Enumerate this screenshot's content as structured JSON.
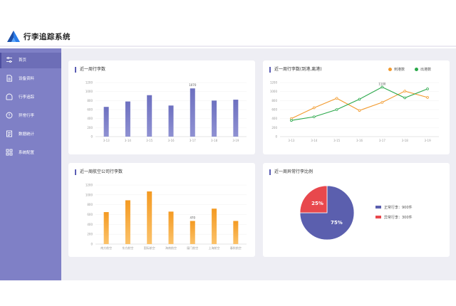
{
  "app": {
    "title": "行李追踪系统"
  },
  "sidebar": {
    "items": [
      {
        "label": "首页",
        "icon": "sliders-icon",
        "active": true
      },
      {
        "label": "设备资料",
        "icon": "document-icon"
      },
      {
        "label": "行李追踪",
        "icon": "luggage-icon"
      },
      {
        "label": "异常行李",
        "icon": "alert-icon"
      },
      {
        "label": "数据统计",
        "icon": "report-icon"
      },
      {
        "label": "系统配置",
        "icon": "grid-icon"
      }
    ]
  },
  "colors": {
    "sidebar": "#7f80c6",
    "bar_purple": "#6b6db9",
    "bar_orange": "#f5a12d",
    "arrive": "#f29a2e",
    "depart": "#2aa84a",
    "pie_normal": "#5b5fae",
    "pie_abnormal": "#e8484d"
  },
  "cards": {
    "weekly": {
      "title": "近一周行李数"
    },
    "inout": {
      "title": "近一周行李数(到港,离港)",
      "legend_arrive": "到港数",
      "legend_depart": "出港数"
    },
    "airline": {
      "title": "近一周航空公司行李数"
    },
    "ratio": {
      "title": "近一周异常行李比例"
    }
  },
  "chart_data": [
    {
      "type": "bar",
      "title": "近一周行李数",
      "categories": [
        "3-13",
        "3-14",
        "3-15",
        "3-16",
        "3-17",
        "3-18",
        "3-19"
      ],
      "values": [
        660,
        780,
        920,
        690,
        1070,
        800,
        820
      ],
      "annotations": [
        {
          "index": 4,
          "label": "1070"
        }
      ],
      "yticks": [
        "0",
        "200",
        "400",
        "600",
        "800",
        "1000",
        "1200"
      ],
      "ylim": [
        0,
        1200
      ],
      "grid": true
    },
    {
      "type": "line",
      "title": "近一周行李数(到港,离港)",
      "categories": [
        "3-13",
        "3-14",
        "3-15",
        "3-16",
        "3-17",
        "3-18",
        "3-19"
      ],
      "series": [
        {
          "name": "到港数",
          "values": [
            400,
            640,
            850,
            580,
            760,
            1010,
            870
          ]
        },
        {
          "name": "出港数",
          "values": [
            360,
            440,
            600,
            830,
            1100,
            860,
            1060
          ]
        }
      ],
      "annotations": [
        {
          "series": 1,
          "index": 4,
          "label": "1100"
        }
      ],
      "yticks": [
        "0",
        "200",
        "400",
        "600",
        "800",
        "1000",
        "1200"
      ],
      "ylim": [
        0,
        1200
      ],
      "legend": "top-right",
      "grid": true
    },
    {
      "type": "bar",
      "title": "近一周航空公司行李数",
      "categories": [
        "南方航空",
        "东方航空",
        "国际航空",
        "海南航空",
        "厦门航空",
        "上海航空",
        "春秋航空"
      ],
      "values": [
        650,
        890,
        1070,
        660,
        470,
        720,
        470
      ],
      "annotations": [
        {
          "index": 4,
          "label": "470"
        }
      ],
      "yticks": [
        "0",
        "200",
        "400",
        "600",
        "800",
        "1000",
        "1200"
      ],
      "ylim": [
        0,
        1200
      ],
      "grid": true
    },
    {
      "type": "pie",
      "title": "近一周异常行李比例",
      "slices": [
        {
          "name": "正常行李",
          "value": 900,
          "label": "75%",
          "legend": "正常行李：900件"
        },
        {
          "name": "异常行李",
          "value": 300,
          "label": "25%",
          "legend": "异常行李：300件"
        }
      ]
    }
  ]
}
